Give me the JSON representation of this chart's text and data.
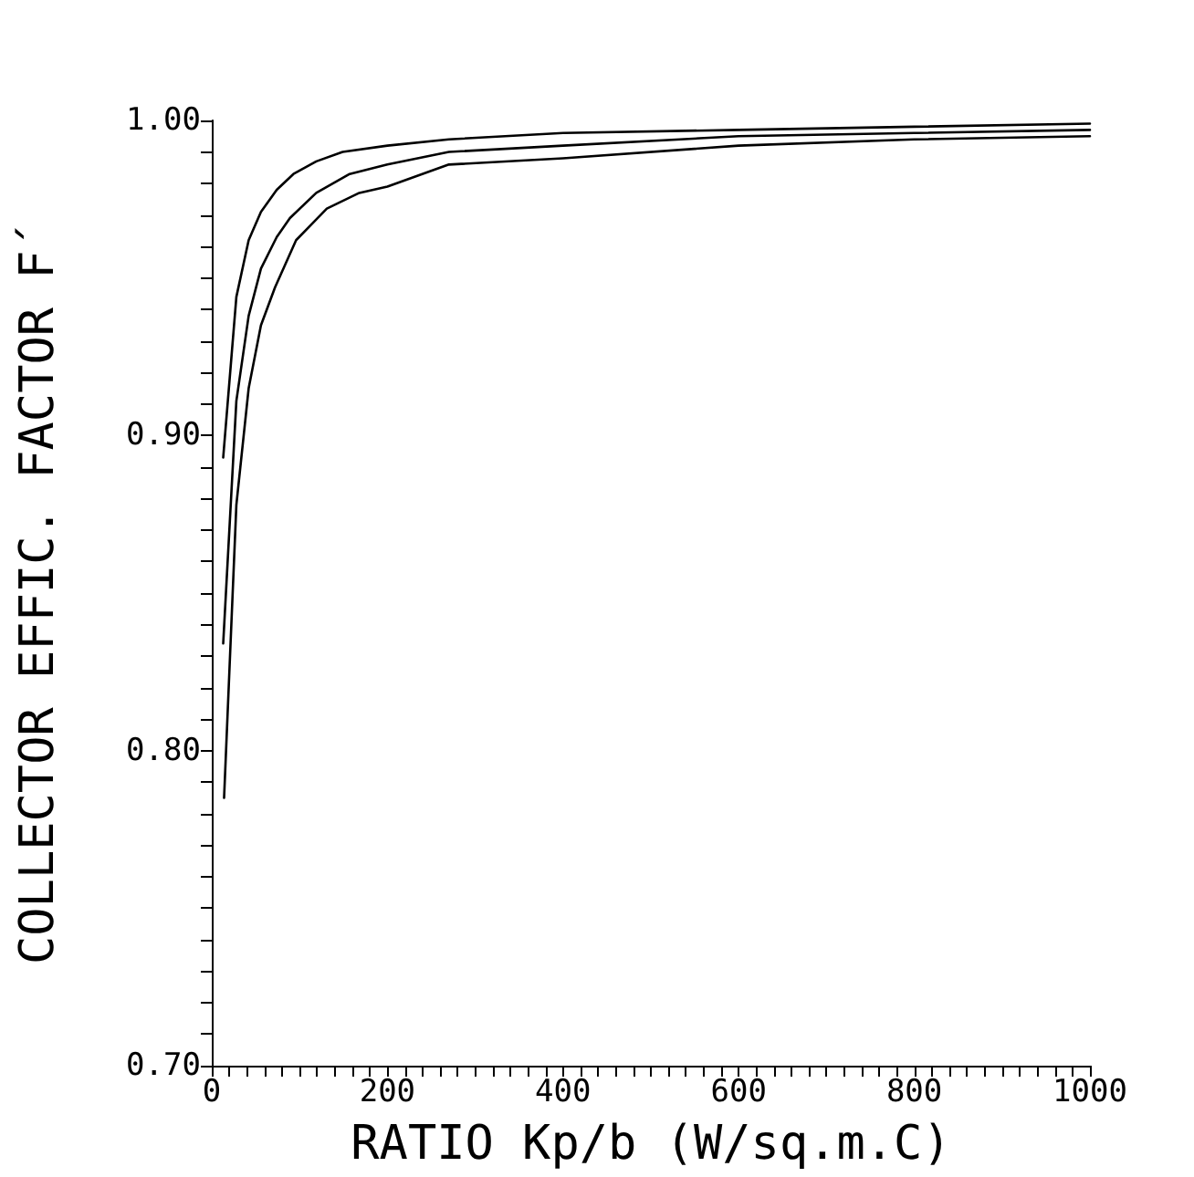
{
  "chart_data": {
    "type": "line",
    "xlabel": "RATIO Kp/b (W/sq.m.C)",
    "ylabel": "COLLECTOR EFFIC. FACTOR F´",
    "xlim": [
      0,
      1000
    ],
    "xticks": [
      0,
      {
        "value": 20,
        "label": null
      },
      {
        "value": 40,
        "label": null
      },
      {
        "value": 60,
        "label": null
      },
      {
        "value": 80,
        "label": null
      },
      {
        "value": 100,
        "label": null
      },
      {
        "value": 120,
        "label": null
      },
      {
        "value": 140,
        "label": null
      },
      {
        "value": 160,
        "label": null
      },
      {
        "value": 180,
        "label": null
      },
      200,
      {
        "value": 220,
        "label": null
      },
      {
        "value": 240,
        "label": null
      },
      {
        "value": 260,
        "label": null
      },
      {
        "value": 280,
        "label": null
      },
      {
        "value": 300,
        "label": null
      },
      {
        "value": 320,
        "label": null
      },
      {
        "value": 340,
        "label": null
      },
      {
        "value": 360,
        "label": null
      },
      {
        "value": 380,
        "label": null
      },
      400,
      {
        "value": 420,
        "label": null
      },
      {
        "value": 440,
        "label": null
      },
      {
        "value": 460,
        "label": null
      },
      {
        "value": 480,
        "label": null
      },
      {
        "value": 500,
        "label": null
      },
      {
        "value": 520,
        "label": null
      },
      {
        "value": 540,
        "label": null
      },
      {
        "value": 560,
        "label": null
      },
      {
        "value": 580,
        "label": null
      },
      600,
      {
        "value": 620,
        "label": null
      },
      {
        "value": 640,
        "label": null
      },
      {
        "value": 660,
        "label": null
      },
      {
        "value": 680,
        "label": null
      },
      {
        "value": 700,
        "label": null
      },
      {
        "value": 720,
        "label": null
      },
      {
        "value": 740,
        "label": null
      },
      {
        "value": 760,
        "label": null
      },
      {
        "value": 780,
        "label": null
      },
      800,
      {
        "value": 820,
        "label": null
      },
      {
        "value": 840,
        "label": null
      },
      {
        "value": 860,
        "label": null
      },
      {
        "value": 880,
        "label": null
      },
      {
        "value": 900,
        "label": null
      },
      {
        "value": 920,
        "label": null
      },
      {
        "value": 940,
        "label": null
      },
      {
        "value": 960,
        "label": null
      },
      {
        "value": 980,
        "label": null
      },
      1000
    ],
    "ylim": [
      0.7,
      1.0
    ],
    "yticks": [
      {
        "value": 0.7,
        "label": "0.70"
      },
      {
        "value": 0.71,
        "label": null
      },
      {
        "value": 0.72,
        "label": null
      },
      {
        "value": 0.73,
        "label": null
      },
      {
        "value": 0.74,
        "label": null
      },
      {
        "value": 0.75,
        "label": null
      },
      {
        "value": 0.76,
        "label": null
      },
      {
        "value": 0.77,
        "label": null
      },
      {
        "value": 0.78,
        "label": null
      },
      {
        "value": 0.79,
        "label": null
      },
      {
        "value": 0.8,
        "label": "0.80"
      },
      {
        "value": 0.81,
        "label": null
      },
      {
        "value": 0.82,
        "label": null
      },
      {
        "value": 0.83,
        "label": null
      },
      {
        "value": 0.84,
        "label": null
      },
      {
        "value": 0.85,
        "label": null
      },
      {
        "value": 0.86,
        "label": null
      },
      {
        "value": 0.87,
        "label": null
      },
      {
        "value": 0.88,
        "label": null
      },
      {
        "value": 0.89,
        "label": null
      },
      {
        "value": 0.9,
        "label": "0.90"
      },
      {
        "value": 0.91,
        "label": null
      },
      {
        "value": 0.92,
        "label": null
      },
      {
        "value": 0.93,
        "label": null
      },
      {
        "value": 0.94,
        "label": null
      },
      {
        "value": 0.95,
        "label": null
      },
      {
        "value": 0.96,
        "label": null
      },
      {
        "value": 0.97,
        "label": null
      },
      {
        "value": 0.98,
        "label": null
      },
      {
        "value": 0.99,
        "label": null
      },
      {
        "value": 1.0,
        "label": "1.00"
      }
    ],
    "grid": false,
    "marker": "none",
    "line_style": "solid",
    "series": [
      {
        "color": "#000000",
        "x": [
          13,
          28,
          42,
          56,
          74,
          93,
          119,
          149,
          200,
          270,
          400,
          600,
          800,
          1000
        ],
        "values": [
          0.893,
          0.944,
          0.962,
          0.971,
          0.978,
          0.983,
          0.987,
          0.99,
          0.992,
          0.994,
          0.996,
          0.997,
          0.998,
          0.999
        ]
      },
      {
        "color": "#000000",
        "x": [
          13,
          28,
          42,
          56,
          74,
          89,
          119,
          157,
          200,
          270,
          400,
          600,
          800,
          1000
        ],
        "values": [
          0.834,
          0.911,
          0.938,
          0.953,
          0.963,
          0.969,
          0.977,
          0.983,
          0.986,
          0.99,
          0.992,
          0.995,
          0.996,
          0.997
        ]
      },
      {
        "color": "#000000",
        "x": [
          14,
          28,
          42,
          56,
          72,
          96,
          131,
          168,
          200,
          270,
          400,
          600,
          800,
          1000
        ],
        "values": [
          0.785,
          0.878,
          0.915,
          0.935,
          0.947,
          0.962,
          0.972,
          0.977,
          0.979,
          0.986,
          0.988,
          0.992,
          0.994,
          0.995
        ]
      }
    ]
  }
}
